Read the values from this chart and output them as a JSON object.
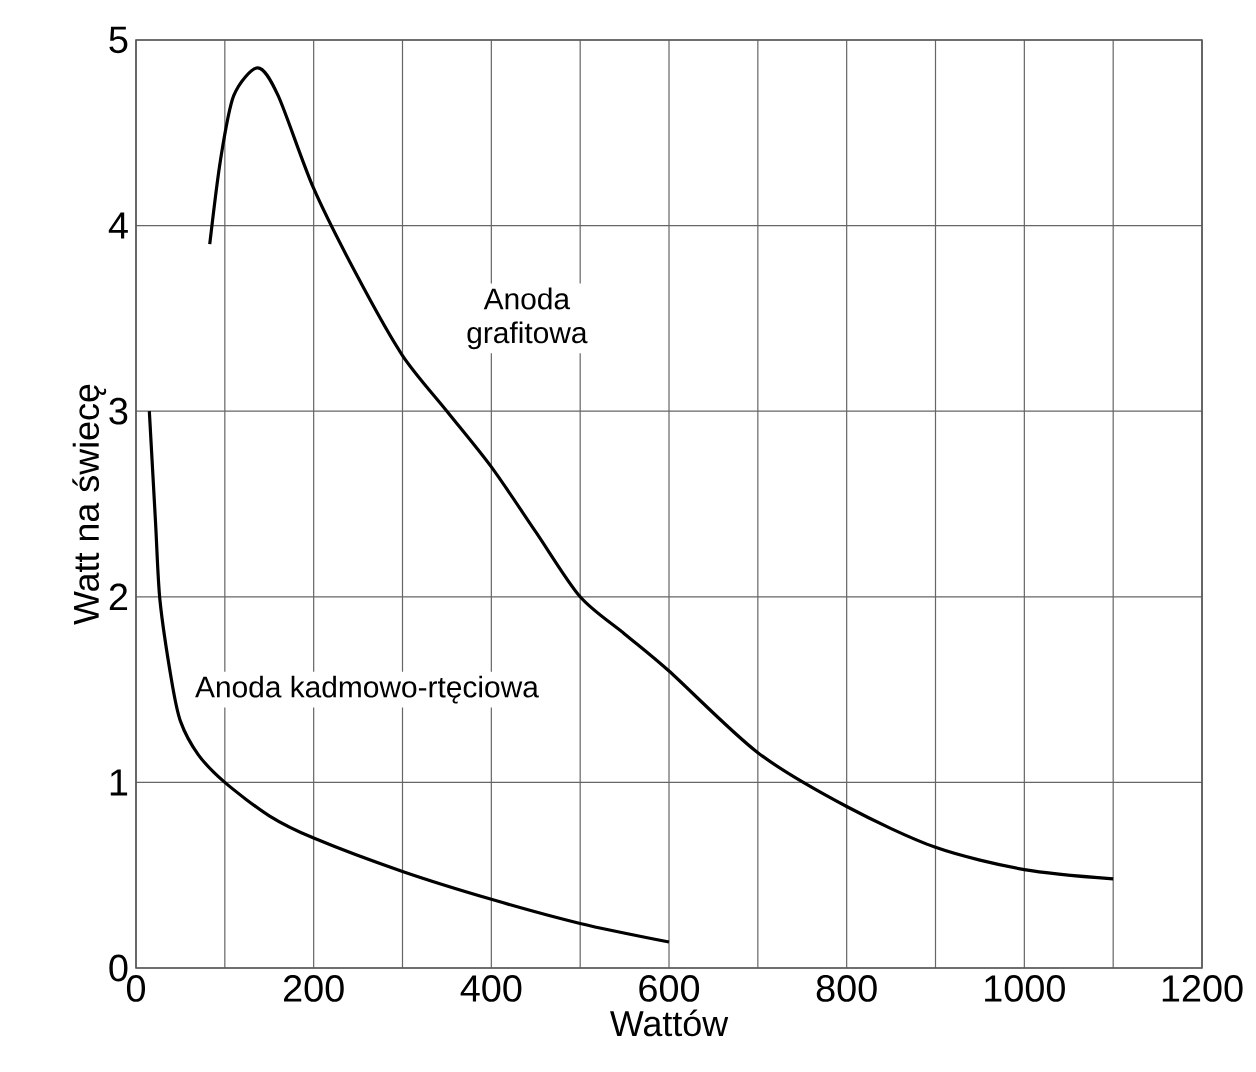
{
  "chart_data": {
    "type": "line",
    "xlabel": "Wattów",
    "ylabel": "Watt na świecę",
    "xlim": [
      0,
      1200
    ],
    "ylim": [
      0,
      5
    ],
    "xticks": [
      0,
      {
        "value": 100,
        "label": null
      },
      200,
      {
        "value": 300,
        "label": null
      },
      400,
      {
        "value": 500,
        "label": null
      },
      600,
      {
        "value": 700,
        "label": null
      },
      800,
      {
        "value": 900,
        "label": null
      },
      1000,
      {
        "value": 1100,
        "label": null
      },
      1200
    ],
    "yticks": [
      0,
      1,
      2,
      3,
      4,
      5
    ],
    "grid": true,
    "legend": false,
    "marker": "none",
    "line_style": "solid",
    "series": [
      {
        "name": "Anoda grafitowa",
        "color": "#000000",
        "x": [
          83,
          95,
          110,
          137,
          160,
          200,
          250,
          300,
          350,
          400,
          450,
          500,
          550,
          600,
          700,
          800,
          900,
          1000,
          1100
        ],
        "values": [
          3.9,
          4.35,
          4.7,
          4.85,
          4.7,
          4.2,
          3.72,
          3.3,
          3.0,
          2.7,
          2.35,
          2.0,
          1.8,
          1.6,
          1.16,
          0.87,
          0.65,
          0.53,
          0.48
        ]
      },
      {
        "name": "Anoda kadmowo-rtęciowa",
        "color": "#000000",
        "x": [
          15,
          22,
          27,
          40,
          50,
          70,
          100,
          150,
          200,
          300,
          400,
          500,
          600
        ],
        "values": [
          3.0,
          2.4,
          1.98,
          1.55,
          1.33,
          1.15,
          1.0,
          0.82,
          0.7,
          0.52,
          0.37,
          0.24,
          0.14
        ]
      }
    ]
  }
}
